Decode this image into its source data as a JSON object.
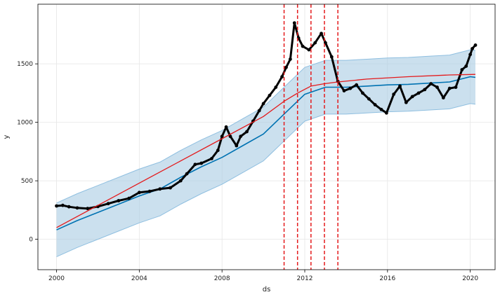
{
  "chart_data": {
    "type": "line",
    "title": "",
    "xlabel": "ds",
    "ylabel": "y",
    "xlim": [
      1999.1,
      2021.2
    ],
    "ylim": [
      -260,
      2010
    ],
    "grid": true,
    "x_ticks": [
      2000,
      2004,
      2008,
      2012,
      2016,
      2020
    ],
    "x_tick_labels": [
      "2000",
      "2004",
      "2008",
      "2012",
      "2016",
      "2020"
    ],
    "y_ticks": [
      0,
      500,
      1000,
      1500
    ],
    "y_tick_labels": [
      "0",
      "500",
      "1000",
      "1500"
    ],
    "changepoints": [
      2011.0,
      2011.65,
      2012.3,
      2012.95,
      2013.6
    ],
    "colors": {
      "observed": "#000000",
      "forecast": "#0072B2",
      "interval": "#a9cce3",
      "trend": "#e41a1c",
      "changepoint": "#e41a1c",
      "grid": "#e6e6e6"
    },
    "series": [
      {
        "role": "observed",
        "x": [
          2000.0,
          2000.3,
          2000.6,
          2001.0,
          2001.5,
          2002.0,
          2002.5,
          2003.0,
          2003.5,
          2004.0,
          2004.5,
          2005.0,
          2005.5,
          2006.0,
          2006.3,
          2006.7,
          2007.0,
          2007.5,
          2007.8,
          2008.0,
          2008.2,
          2008.4,
          2008.7,
          2008.9,
          2009.2,
          2009.5,
          2009.8,
          2010.0,
          2010.3,
          2010.6,
          2010.9,
          2011.1,
          2011.3,
          2011.5,
          2011.7,
          2011.9,
          2012.2,
          2012.5,
          2012.8,
          2013.0,
          2013.3,
          2013.6,
          2013.9,
          2014.2,
          2014.5,
          2014.8,
          2015.1,
          2015.4,
          2015.7,
          2015.95,
          2016.3,
          2016.6,
          2016.9,
          2017.2,
          2017.5,
          2017.8,
          2018.1,
          2018.4,
          2018.7,
          2019.0,
          2019.3,
          2019.6,
          2019.8,
          2020.0,
          2020.1,
          2020.25
        ],
        "y": [
          285,
          290,
          278,
          268,
          263,
          280,
          305,
          330,
          350,
          400,
          410,
          430,
          440,
          500,
          560,
          640,
          650,
          690,
          760,
          880,
          960,
          880,
          800,
          880,
          920,
          1010,
          1100,
          1160,
          1230,
          1300,
          1390,
          1470,
          1540,
          1850,
          1720,
          1650,
          1620,
          1680,
          1760,
          1680,
          1560,
          1350,
          1270,
          1290,
          1320,
          1250,
          1200,
          1150,
          1110,
          1080,
          1240,
          1310,
          1170,
          1220,
          1250,
          1280,
          1330,
          1300,
          1210,
          1290,
          1300,
          1450,
          1480,
          1580,
          1630,
          1660
        ]
      },
      {
        "role": "forecast",
        "x": [
          2000.0,
          2001.0,
          2002.0,
          2003.0,
          2004.0,
          2005.0,
          2006.0,
          2007.0,
          2008.0,
          2009.0,
          2010.0,
          2011.0,
          2012.0,
          2013.0,
          2014.0,
          2015.0,
          2016.0,
          2017.0,
          2018.0,
          2019.0,
          2020.0,
          2020.25
        ],
        "y": [
          80,
          160,
          230,
          300,
          370,
          430,
          530,
          620,
          700,
          800,
          900,
          1070,
          1240,
          1300,
          1300,
          1310,
          1320,
          1325,
          1335,
          1345,
          1390,
          1385
        ]
      },
      {
        "role": "upper_bound",
        "x": [
          2000.0,
          2001.0,
          2002.0,
          2003.0,
          2004.0,
          2005.0,
          2006.0,
          2007.0,
          2008.0,
          2009.0,
          2010.0,
          2011.0,
          2012.0,
          2013.0,
          2014.0,
          2015.0,
          2016.0,
          2017.0,
          2018.0,
          2019.0,
          2020.0,
          2020.25
        ],
        "y": [
          310,
          390,
          460,
          530,
          600,
          660,
          760,
          850,
          930,
          1030,
          1130,
          1300,
          1470,
          1530,
          1530,
          1540,
          1550,
          1555,
          1565,
          1575,
          1620,
          1615
        ]
      },
      {
        "role": "lower_bound",
        "x": [
          2000.0,
          2001.0,
          2002.0,
          2003.0,
          2004.0,
          2005.0,
          2006.0,
          2007.0,
          2008.0,
          2009.0,
          2010.0,
          2011.0,
          2012.0,
          2013.0,
          2014.0,
          2015.0,
          2016.0,
          2017.0,
          2018.0,
          2019.0,
          2020.0,
          2020.25
        ],
        "y": [
          -150,
          -70,
          0,
          70,
          140,
          200,
          300,
          390,
          470,
          570,
          670,
          840,
          1010,
          1070,
          1070,
          1080,
          1090,
          1095,
          1105,
          1115,
          1160,
          1155
        ]
      },
      {
        "role": "trend",
        "x": [
          2000.0,
          2002.0,
          2004.0,
          2006.0,
          2008.0,
          2010.0,
          2011.0,
          2011.65,
          2012.3,
          2012.95,
          2013.6,
          2015.0,
          2017.0,
          2019.0,
          2020.25
        ],
        "y": [
          100,
          290,
          480,
          670,
          860,
          1050,
          1180,
          1250,
          1310,
          1330,
          1345,
          1370,
          1390,
          1405,
          1410
        ]
      }
    ]
  }
}
